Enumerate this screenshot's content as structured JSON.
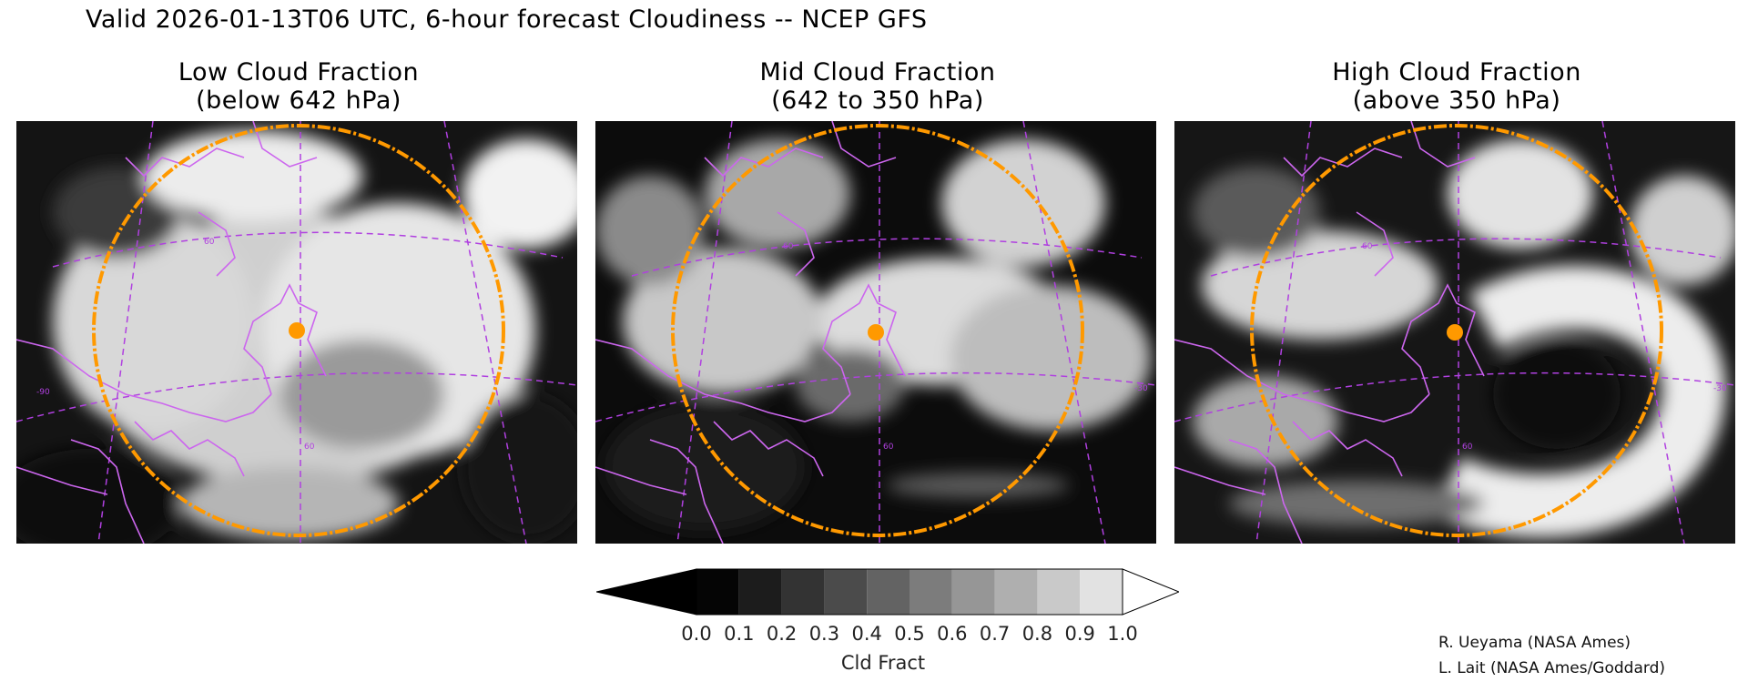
{
  "title": "Valid 2026-01-13T06 UTC, 6-hour forecast Cloudiness -- NCEP GFS",
  "panels": [
    {
      "line1": "Low Cloud Fraction",
      "line2": "(below 642 hPa)",
      "lat_label": "60",
      "lon_label": "60",
      "extra_label": "-90"
    },
    {
      "line1": "Mid Cloud Fraction",
      "line2": "(642 to 350 hPa)",
      "lat_label": "60",
      "lon_label": "60",
      "extra_label": "-30"
    },
    {
      "line1": "High Cloud Fraction",
      "line2": "(above 350 hPa)",
      "lat_label": "60",
      "lon_label": "60",
      "extra_label": "-30"
    }
  ],
  "colorbar": {
    "label": "Cld Fract",
    "ticks": [
      "0.0",
      "0.1",
      "0.2",
      "0.3",
      "0.4",
      "0.5",
      "0.6",
      "0.7",
      "0.8",
      "0.9",
      "1.0"
    ],
    "shades": [
      "#050505",
      "#1c1c1c",
      "#333333",
      "#4b4b4b",
      "#636363",
      "#7c7c7c",
      "#969696",
      "#afafaf",
      "#c9c9c9",
      "#e2e2e2"
    ]
  },
  "credits": [
    "R. Ueyama (NASA Ames)",
    "L. Lait (NASA Ames/Goddard)"
  ],
  "colors": {
    "coastline": "#cc66ee",
    "grid": "#b040e0",
    "range_ring": "#ff9900",
    "marker": "#ff9900"
  }
}
